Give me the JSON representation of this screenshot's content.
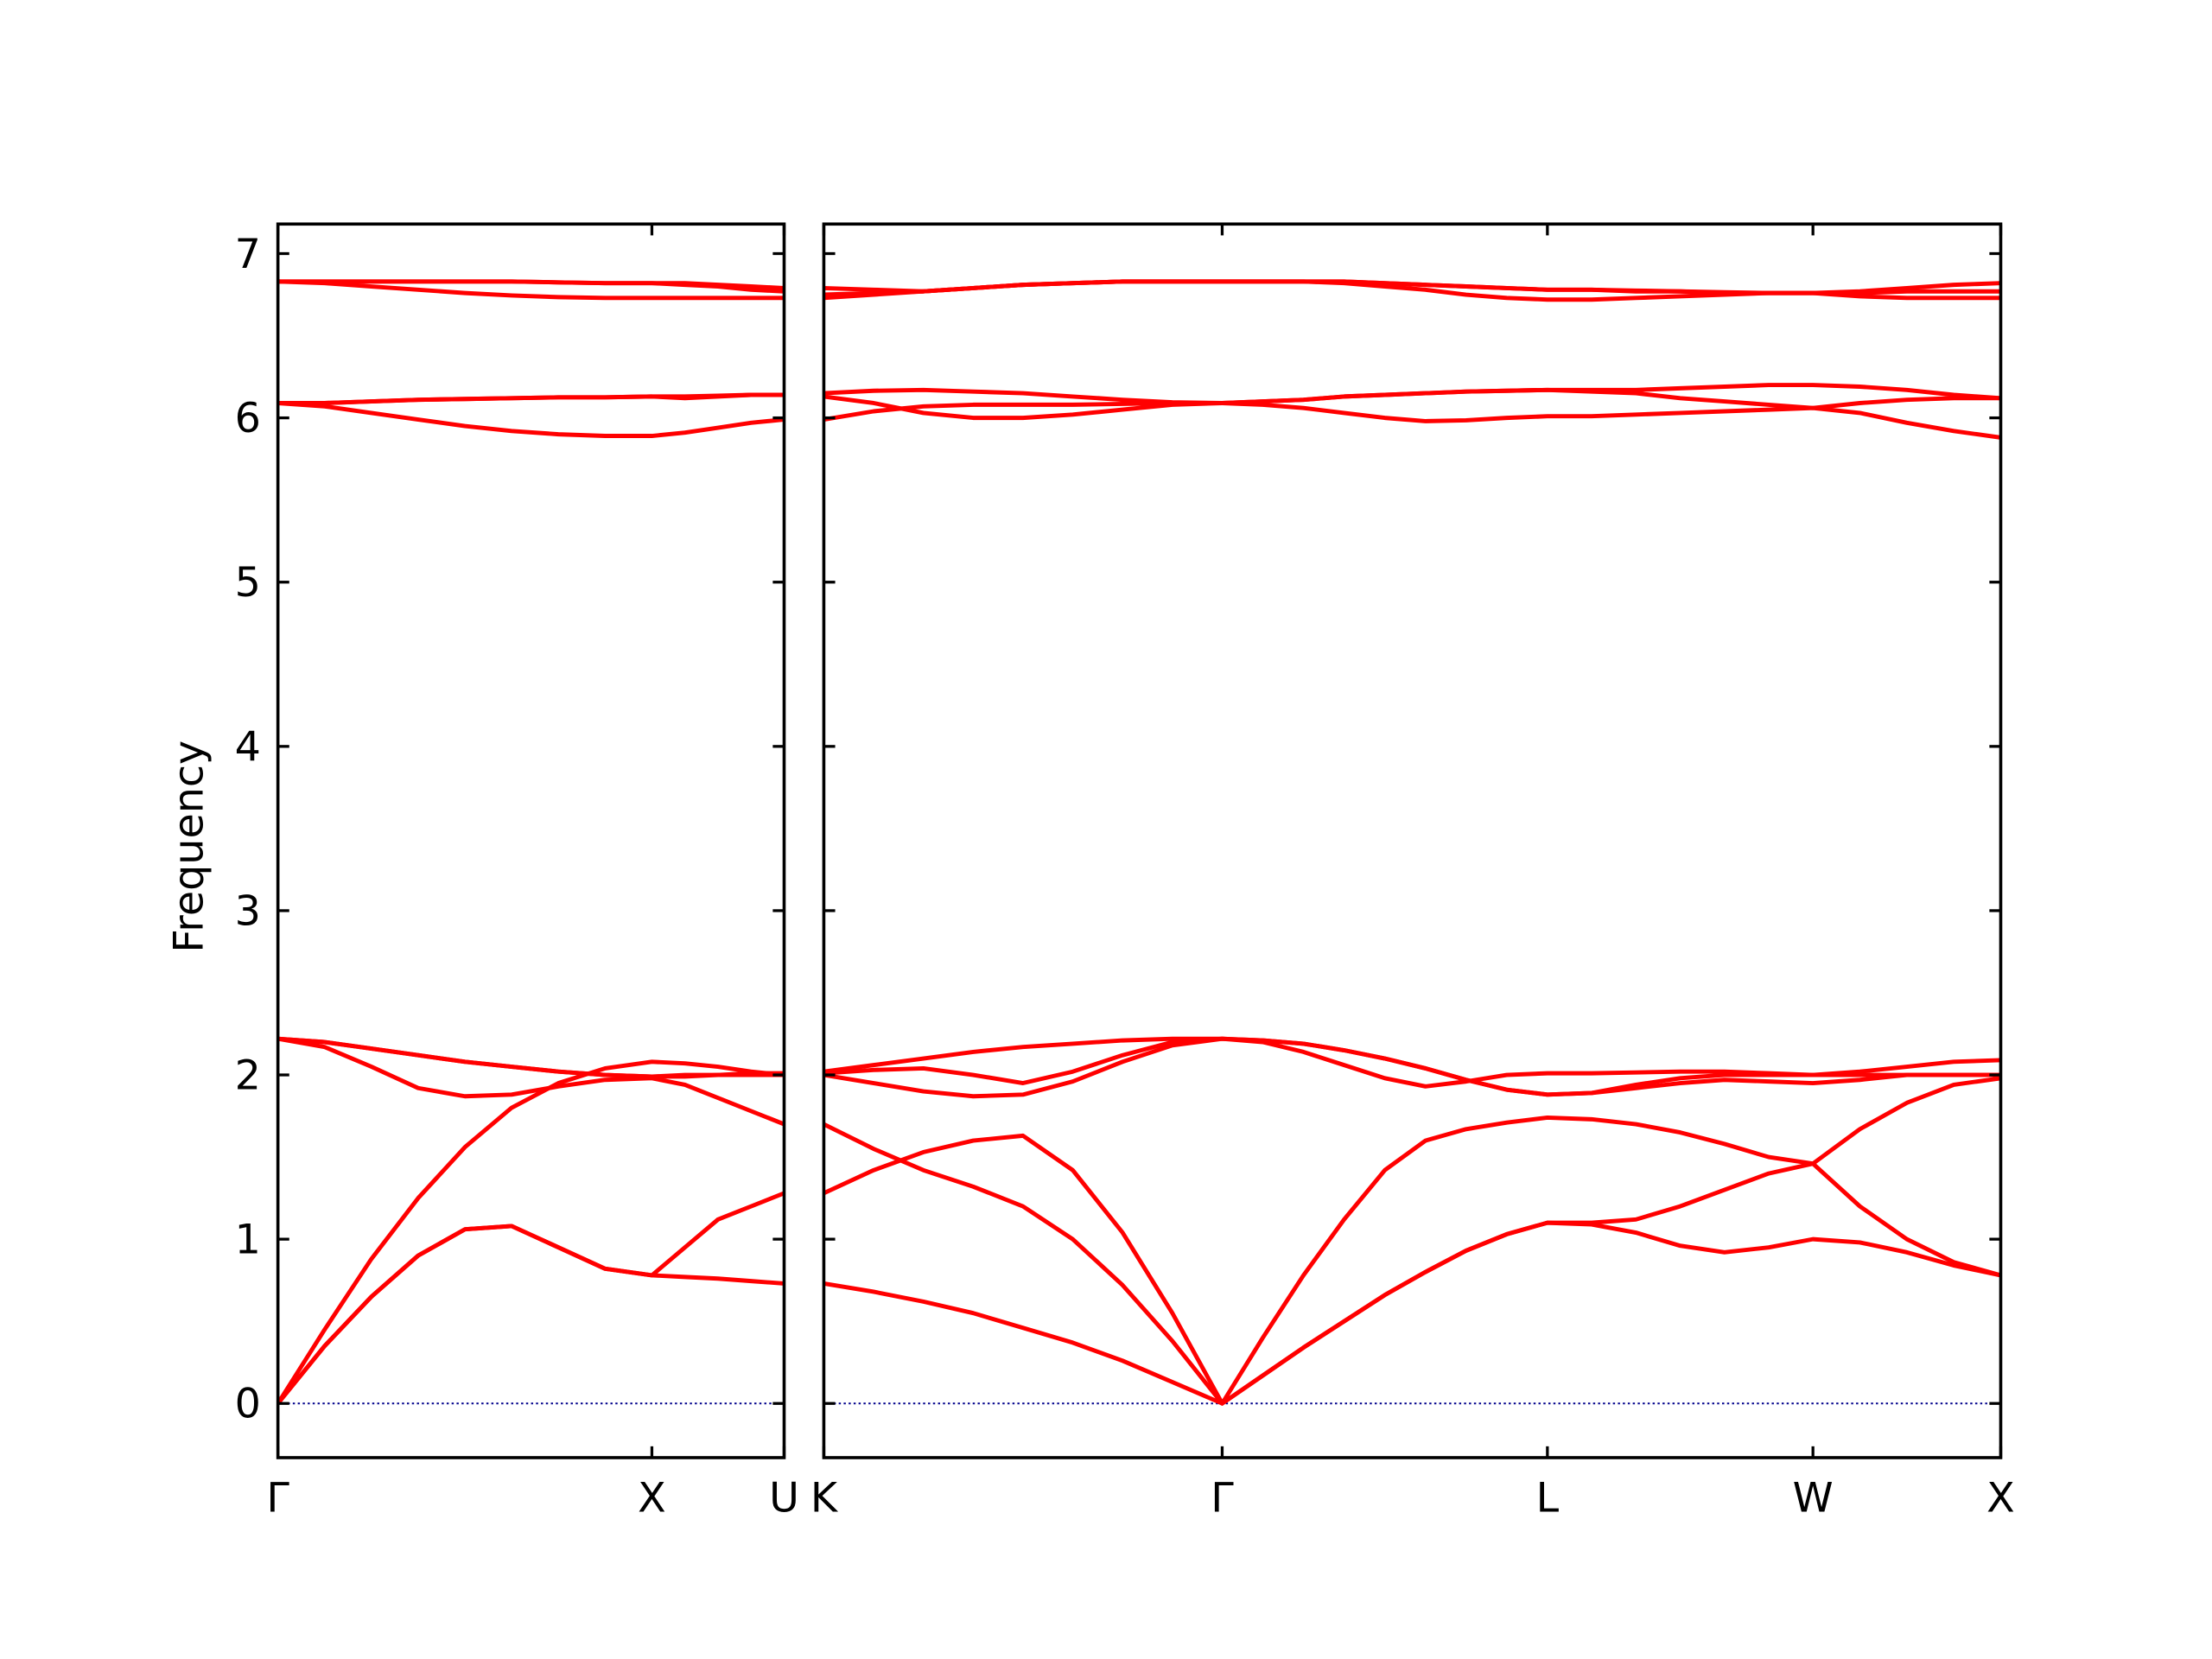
{
  "chart_data": [
    {
      "type": "line",
      "ylabel": "Frequency",
      "color": "#ff0000",
      "zero_line_color": "#00008b",
      "show_ytick_labels": true,
      "xlim": [
        0,
        1.3536
      ],
      "ylim": [
        -0.33,
        7.18
      ],
      "yticks": [
        0,
        1,
        2,
        3,
        4,
        5,
        6,
        7
      ],
      "xticks": [
        {
          "value": 0,
          "label": "Γ"
        },
        {
          "value": 1,
          "label": "X"
        },
        {
          "value": 1.3536,
          "label": "U"
        }
      ],
      "x": [
        0,
        0.125,
        0.25,
        0.375,
        0.5,
        0.625,
        0.75,
        0.875,
        1,
        1.0884,
        1.1768,
        1.2652,
        1.3536
      ],
      "series": [
        {
          "values": [
            0,
            0.35,
            0.65,
            0.9,
            1.06,
            1.08,
            0.95,
            0.82,
            0.78,
            0.77,
            0.76,
            0.745,
            0.73
          ]
        },
        {
          "values": [
            0,
            0.35,
            0.65,
            0.9,
            1.06,
            1.08,
            0.95,
            0.82,
            0.78,
            0.95,
            1.12,
            1.2,
            1.28
          ]
        },
        {
          "values": [
            0,
            0.45,
            0.88,
            1.25,
            1.56,
            1.8,
            1.95,
            2.04,
            2.08,
            2.07,
            2.05,
            2.02,
            2.0
          ]
        },
        {
          "values": [
            2.22,
            2.17,
            2.05,
            1.92,
            1.87,
            1.88,
            1.93,
            1.97,
            1.98,
            1.94,
            1.86,
            1.78,
            1.7
          ]
        },
        {
          "values": [
            2.22,
            2.2,
            2.16,
            2.12,
            2.08,
            2.05,
            2.02,
            2.0,
            1.99,
            1.99,
            2.0,
            2.0,
            2.0
          ]
        },
        {
          "values": [
            2.22,
            2.2,
            2.16,
            2.12,
            2.08,
            2.05,
            2.02,
            2.0,
            1.99,
            2.0,
            2.0,
            2.01,
            2.01
          ]
        },
        {
          "values": [
            6.09,
            6.07,
            6.03,
            5.99,
            5.95,
            5.92,
            5.9,
            5.89,
            5.89,
            5.91,
            5.94,
            5.97,
            5.99
          ]
        },
        {
          "values": [
            6.09,
            6.09,
            6.1,
            6.11,
            6.115,
            6.12,
            6.125,
            6.125,
            6.13,
            6.13,
            6.135,
            6.14,
            6.14
          ]
        },
        {
          "values": [
            6.09,
            6.09,
            6.1,
            6.11,
            6.115,
            6.12,
            6.125,
            6.125,
            6.13,
            6.12,
            6.13,
            6.14,
            6.14
          ]
        },
        {
          "values": [
            6.83,
            6.82,
            6.8,
            6.78,
            6.76,
            6.745,
            6.735,
            6.73,
            6.73,
            6.73,
            6.73,
            6.73,
            6.73
          ]
        },
        {
          "values": [
            6.83,
            6.83,
            6.83,
            6.83,
            6.83,
            6.83,
            6.825,
            6.82,
            6.82,
            6.81,
            6.8,
            6.78,
            6.77
          ]
        },
        {
          "values": [
            6.83,
            6.83,
            6.83,
            6.83,
            6.83,
            6.83,
            6.825,
            6.82,
            6.82,
            6.82,
            6.81,
            6.8,
            6.79
          ]
        }
      ]
    },
    {
      "type": "line",
      "color": "#ff0000",
      "zero_line_color": "#00008b",
      "show_ytick_labels": false,
      "xlim": [
        1.3536,
        4.4874
      ],
      "ylim": [
        -0.33,
        7.18
      ],
      "yticks": [
        0,
        1,
        2,
        3,
        4,
        5,
        6,
        7
      ],
      "xticks": [
        {
          "value": 1.3536,
          "label": "K"
        },
        {
          "value": 2.4143,
          "label": "Γ"
        },
        {
          "value": 3.2803,
          "label": "L"
        },
        {
          "value": 3.9874,
          "label": "W"
        },
        {
          "value": 4.4874,
          "label": "X"
        }
      ],
      "x": [
        1.3536,
        1.4862,
        1.6188,
        1.7513,
        1.8839,
        2.0165,
        2.1491,
        2.2817,
        2.4143,
        2.5225,
        2.6308,
        2.739,
        2.8473,
        2.9555,
        3.0638,
        3.172,
        3.2803,
        3.3981,
        3.516,
        3.6338,
        3.7517,
        3.8695,
        3.9874,
        4.1124,
        4.2374,
        4.3624,
        4.4874
      ],
      "series": [
        {
          "values": [
            0.73,
            0.68,
            0.62,
            0.55,
            0.46,
            0.37,
            0.26,
            0.13,
            0,
            0.17,
            0.34,
            0.5,
            0.66,
            0.8,
            0.93,
            1.03,
            1.1,
            1.09,
            1.04,
            0.96,
            0.92,
            0.95,
            1.0,
            0.98,
            0.92,
            0.84,
            0.78
          ]
        },
        {
          "values": [
            1.28,
            1.42,
            1.53,
            1.6,
            1.63,
            1.42,
            1.04,
            0.55,
            0,
            0.4,
            0.78,
            1.12,
            1.42,
            1.6,
            1.67,
            1.71,
            1.74,
            1.73,
            1.7,
            1.65,
            1.58,
            1.5,
            1.46,
            1.2,
            1.0,
            0.86,
            0.78
          ]
        },
        {
          "values": [
            1.7,
            1.55,
            1.42,
            1.32,
            1.2,
            1.0,
            0.72,
            0.38,
            0,
            0.17,
            0.34,
            0.5,
            0.66,
            0.8,
            0.93,
            1.03,
            1.1,
            1.1,
            1.12,
            1.2,
            1.3,
            1.4,
            1.46,
            1.67,
            1.83,
            1.94,
            1.98
          ]
        },
        {
          "values": [
            2.0,
            1.95,
            1.9,
            1.87,
            1.88,
            1.96,
            2.08,
            2.18,
            2.22,
            2.2,
            2.14,
            2.06,
            1.98,
            1.93,
            1.96,
            2.0,
            2.01,
            2.01,
            2.015,
            2.02,
            2.02,
            2.01,
            2.0,
            2.0,
            2.0,
            2.0,
            2.0
          ]
        },
        {
          "values": [
            2.01,
            2.03,
            2.04,
            2.0,
            1.95,
            2.02,
            2.12,
            2.2,
            2.22,
            2.21,
            2.19,
            2.15,
            2.1,
            2.04,
            1.97,
            1.91,
            1.88,
            1.89,
            1.92,
            1.95,
            1.97,
            1.96,
            1.95,
            1.97,
            2.0,
            2.0,
            2.0
          ]
        },
        {
          "values": [
            2.02,
            2.06,
            2.1,
            2.14,
            2.17,
            2.19,
            2.21,
            2.22,
            2.22,
            2.21,
            2.19,
            2.15,
            2.1,
            2.04,
            1.97,
            1.91,
            1.88,
            1.89,
            1.94,
            1.98,
            2.0,
            2.0,
            2.0,
            2.02,
            2.05,
            2.08,
            2.09
          ]
        },
        {
          "values": [
            5.99,
            6.04,
            6.07,
            6.08,
            6.08,
            6.08,
            6.085,
            6.09,
            6.09,
            6.08,
            6.06,
            6.03,
            6.0,
            5.98,
            5.985,
            6.0,
            6.01,
            6.01,
            6.02,
            6.03,
            6.04,
            6.05,
            6.06,
            6.03,
            5.97,
            5.92,
            5.88
          ]
        },
        {
          "values": [
            6.13,
            6.09,
            6.03,
            6.0,
            6.0,
            6.02,
            6.05,
            6.08,
            6.09,
            6.1,
            6.11,
            6.13,
            6.14,
            6.15,
            6.16,
            6.165,
            6.17,
            6.16,
            6.15,
            6.12,
            6.1,
            6.08,
            6.06,
            6.09,
            6.11,
            6.12,
            6.12
          ]
        },
        {
          "values": [
            6.15,
            6.165,
            6.17,
            6.16,
            6.15,
            6.13,
            6.11,
            6.095,
            6.09,
            6.1,
            6.11,
            6.13,
            6.14,
            6.15,
            6.16,
            6.165,
            6.17,
            6.17,
            6.17,
            6.18,
            6.19,
            6.2,
            6.2,
            6.19,
            6.17,
            6.14,
            6.12
          ]
        },
        {
          "values": [
            6.73,
            6.75,
            6.77,
            6.79,
            6.81,
            6.82,
            6.83,
            6.83,
            6.83,
            6.83,
            6.83,
            6.82,
            6.8,
            6.78,
            6.75,
            6.73,
            6.72,
            6.72,
            6.73,
            6.74,
            6.75,
            6.76,
            6.76,
            6.74,
            6.73,
            6.73,
            6.73
          ]
        },
        {
          "values": [
            6.75,
            6.76,
            6.77,
            6.79,
            6.81,
            6.82,
            6.83,
            6.83,
            6.83,
            6.83,
            6.83,
            6.83,
            6.82,
            6.81,
            6.8,
            6.79,
            6.78,
            6.78,
            6.77,
            6.77,
            6.76,
            6.76,
            6.76,
            6.77,
            6.79,
            6.81,
            6.82
          ]
        },
        {
          "values": [
            6.79,
            6.78,
            6.77,
            6.79,
            6.81,
            6.82,
            6.83,
            6.83,
            6.83,
            6.83,
            6.83,
            6.83,
            6.82,
            6.81,
            6.8,
            6.79,
            6.78,
            6.78,
            6.775,
            6.77,
            6.765,
            6.76,
            6.76,
            6.76,
            6.77,
            6.77,
            6.77
          ]
        }
      ]
    }
  ]
}
